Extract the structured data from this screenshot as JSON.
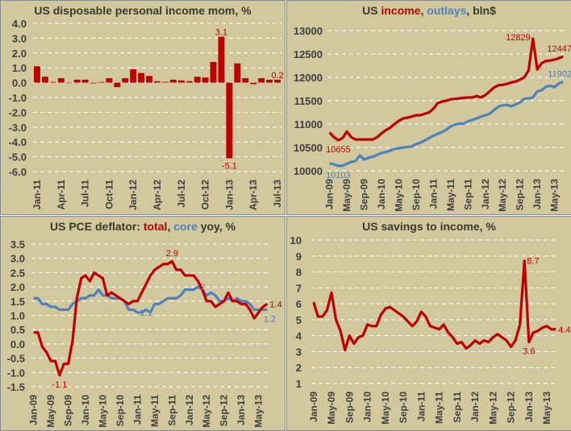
{
  "colors": {
    "red": "#c00000",
    "blue": "#4f81bd",
    "background": "#d2c89e",
    "grid": "#ffffff",
    "text": "#404040"
  },
  "chart_data": [
    {
      "type": "bar",
      "title": "US disposable personal income mom, %",
      "ylim": [
        -6,
        4
      ],
      "ytick_step": 1,
      "ytick_decimals": 1,
      "grid": true,
      "x_start": "Jan-11",
      "tick_labels": [
        "Jan-11",
        "Apr-11",
        "Jul-11",
        "Oct-11",
        "Jan-12",
        "Apr-12",
        "Jul-12",
        "Oct-12",
        "Jan-13",
        "Apr-13",
        "Jul-13"
      ],
      "series": [
        {
          "values": [
            1.1,
            0.4,
            0.05,
            0.3,
            0.0,
            0.2,
            0.2,
            -0.05,
            0.05,
            0.3,
            -0.3,
            0.3,
            0.9,
            0.65,
            0.45,
            0.1,
            0.05,
            0.2,
            0.15,
            0.1,
            0.4,
            0.35,
            1.4,
            3.1,
            -5.1,
            1.3,
            0.3,
            -0.1,
            0.3,
            0.2,
            0.2
          ],
          "color": "#c00000"
        }
      ],
      "annotations": [
        {
          "index": 23,
          "text": "3.1"
        },
        {
          "index": 24,
          "text": "-5.1"
        },
        {
          "index": 30,
          "text": "0.2"
        }
      ]
    },
    {
      "type": "line",
      "title_parts": [
        {
          "text": "US ",
          "c": ""
        },
        {
          "text": "income",
          "c": "red"
        },
        {
          "text": ", ",
          "c": ""
        },
        {
          "text": "outlays",
          "c": "blue"
        },
        {
          "text": ", bln$",
          "c": ""
        }
      ],
      "ylim": [
        10000,
        13000
      ],
      "ytick_step": 500,
      "ytick_decimals": 0,
      "grid": true,
      "tick_labels": [
        "Jan-09",
        "May-09",
        "Sep-09",
        "Jan-10",
        "May-10",
        "Sep-10",
        "Jan-11",
        "May-11",
        "Sep-11",
        "Jan-12",
        "May-12",
        "Sep-12",
        "Jan-13",
        "May-13"
      ],
      "series": [
        {
          "name": "income",
          "color": "#c00000",
          "values": [
            10820,
            10720,
            10655,
            10700,
            10840,
            10720,
            10670,
            10670,
            10670,
            10670,
            10670,
            10720,
            10800,
            10870,
            10920,
            11000,
            11070,
            11120,
            11140,
            11160,
            11190,
            11190,
            11220,
            11250,
            11330,
            11450,
            11480,
            11500,
            11530,
            11540,
            11550,
            11560,
            11570,
            11570,
            11600,
            11570,
            11620,
            11700,
            11780,
            11830,
            11840,
            11860,
            11890,
            11910,
            11950,
            12000,
            12150,
            12829,
            12170,
            12300,
            12350,
            12360,
            12380,
            12410,
            12447
          ]
        },
        {
          "name": "outlays",
          "color": "#4f81bd",
          "values": [
            10160,
            10140,
            10103,
            10110,
            10150,
            10190,
            10210,
            10330,
            10240,
            10280,
            10300,
            10340,
            10380,
            10400,
            10430,
            10470,
            10480,
            10500,
            10510,
            10520,
            10570,
            10600,
            10650,
            10700,
            10750,
            10790,
            10830,
            10880,
            10950,
            10990,
            11010,
            11010,
            11060,
            11090,
            11120,
            11160,
            11190,
            11220,
            11300,
            11370,
            11400,
            11410,
            11380,
            11420,
            11460,
            11540,
            11550,
            11570,
            11700,
            11720,
            11800,
            11820,
            11790,
            11870,
            11902
          ]
        }
      ],
      "annotations": [
        {
          "series": 0,
          "index": 2,
          "text": "10655",
          "pos": "below"
        },
        {
          "series": 1,
          "index": 2,
          "text": "10103",
          "pos": "below"
        },
        {
          "series": 0,
          "index": 47,
          "text": "12829",
          "pos": "left"
        },
        {
          "series": 0,
          "index": 54,
          "text": "12447",
          "pos": "above"
        },
        {
          "series": 1,
          "index": 54,
          "text": "11902",
          "pos": "above"
        }
      ]
    },
    {
      "type": "line",
      "title_parts": [
        {
          "text": "US PCE deflator: ",
          "c": ""
        },
        {
          "text": "total",
          "c": "red"
        },
        {
          "text": ", ",
          "c": ""
        },
        {
          "text": "core",
          "c": "blue"
        },
        {
          "text": " yoy, %",
          "c": ""
        }
      ],
      "ylim": [
        -1.5,
        3.5
      ],
      "ytick_step": 0.5,
      "ytick_decimals": 1,
      "grid": true,
      "tick_labels": [
        "Jan-09",
        "May-09",
        "Sep-09",
        "Jan-10",
        "May-10",
        "Sep-10",
        "Jan-11",
        "May-11",
        "Sep-11",
        "Jan-12",
        "May-12",
        "Sep-12",
        "Jan-13",
        "May-13"
      ],
      "series": [
        {
          "name": "total",
          "color": "#c00000",
          "values": [
            0.4,
            0.4,
            -0.1,
            -0.3,
            -0.6,
            -0.6,
            -1.1,
            -0.7,
            -0.7,
            0.1,
            1.6,
            2.3,
            2.4,
            2.2,
            2.5,
            2.4,
            2.3,
            1.7,
            1.8,
            1.7,
            1.6,
            1.5,
            1.4,
            1.5,
            1.5,
            1.8,
            2.1,
            2.4,
            2.6,
            2.7,
            2.8,
            2.8,
            2.9,
            2.6,
            2.6,
            2.4,
            2.4,
            2.4,
            2.2,
            1.9,
            1.5,
            1.5,
            1.3,
            1.4,
            1.5,
            1.8,
            1.5,
            1.5,
            1.4,
            1.4,
            1.2,
            0.9,
            1.1,
            1.3,
            1.4
          ]
        },
        {
          "name": "core",
          "color": "#4f81bd",
          "values": [
            1.6,
            1.6,
            1.4,
            1.4,
            1.3,
            1.3,
            1.2,
            1.2,
            1.2,
            1.4,
            1.5,
            1.6,
            1.6,
            1.7,
            1.7,
            1.9,
            1.7,
            1.7,
            1.6,
            1.6,
            1.6,
            1.5,
            1.2,
            1.2,
            1.1,
            1.1,
            1.2,
            1.1,
            1.4,
            1.4,
            1.5,
            1.6,
            1.6,
            1.6,
            1.7,
            1.9,
            1.9,
            1.9,
            2.0,
            1.9,
            1.7,
            1.8,
            1.7,
            1.5,
            1.5,
            1.6,
            1.5,
            1.6,
            1.5,
            1.5,
            1.4,
            1.2,
            1.2,
            1.2,
            1.2
          ]
        }
      ],
      "annotations": [
        {
          "series": 0,
          "index": 6,
          "text": "-1.1",
          "pos": "below"
        },
        {
          "series": 0,
          "index": 32,
          "text": "2.9",
          "pos": "above"
        },
        {
          "series": 1,
          "index": 24,
          "text": "1.1",
          "pos": "right"
        },
        {
          "series": 1,
          "index": 38,
          "text": "2",
          "pos": "right"
        },
        {
          "series": 0,
          "index": 54,
          "text": "1.4",
          "pos": "right"
        },
        {
          "series": 1,
          "index": 54,
          "text": "1.2",
          "pos": "below"
        }
      ]
    },
    {
      "type": "line",
      "title": "US savings to income, %",
      "ylim": [
        1,
        10
      ],
      "ytick_step": 1,
      "ytick_decimals": 0,
      "grid": true,
      "tick_labels": [
        "Jan-09",
        "May-09",
        "Sep-09",
        "Jan-10",
        "May-10",
        "Sep-10",
        "Jan-11",
        "May-11",
        "Sep-11",
        "Jan-12",
        "May-12",
        "Sep-12",
        "Jan-13",
        "May-13"
      ],
      "series": [
        {
          "color": "#c00000",
          "values": [
            6.1,
            5.2,
            5.2,
            5.6,
            6.7,
            5.0,
            4.3,
            3.1,
            4.0,
            3.5,
            3.9,
            4.0,
            4.7,
            4.6,
            4.6,
            5.3,
            5.7,
            5.8,
            5.6,
            5.4,
            5.2,
            4.9,
            4.6,
            4.9,
            5.5,
            5.2,
            4.6,
            4.5,
            4.4,
            4.7,
            4.2,
            3.9,
            3.5,
            3.6,
            3.2,
            3.4,
            3.7,
            3.5,
            3.7,
            3.6,
            3.9,
            4.1,
            3.9,
            3.7,
            3.3,
            3.7,
            4.7,
            8.7,
            3.6,
            4.2,
            4.3,
            4.5,
            4.6,
            4.4,
            4.4
          ]
        }
      ],
      "annotations": [
        {
          "series": 0,
          "index": 47,
          "text": "8.7",
          "pos": "right"
        },
        {
          "series": 0,
          "index": 48,
          "text": "3.6",
          "pos": "below"
        },
        {
          "series": 0,
          "index": 54,
          "text": "4.4",
          "pos": "right"
        }
      ]
    }
  ]
}
